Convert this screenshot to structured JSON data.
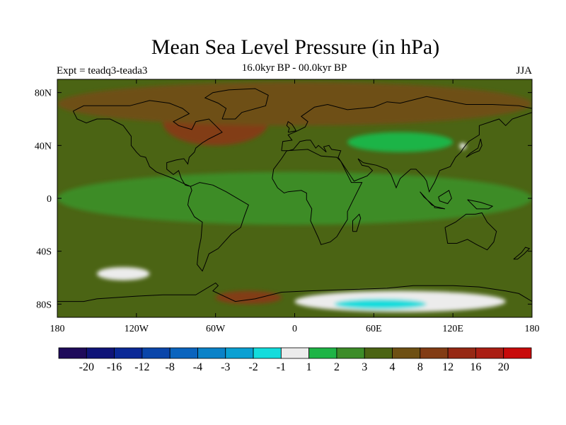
{
  "chart_data": {
    "type": "heatmap",
    "title": "Mean Sea Level Pressure (in hPa)",
    "subtitle": "16.0kyr BP - 00.0kyr BP",
    "left_label": "Expt = teadq3-teada3",
    "right_label": "JJA",
    "x_range": [
      -180,
      180
    ],
    "y_range": [
      -90,
      90
    ],
    "x_ticks": [
      {
        "value": -180,
        "label": "180"
      },
      {
        "value": -120,
        "label": "120W"
      },
      {
        "value": -60,
        "label": "60W"
      },
      {
        "value": 0,
        "label": "0"
      },
      {
        "value": 60,
        "label": "60E"
      },
      {
        "value": 120,
        "label": "120E"
      },
      {
        "value": 180,
        "label": "180"
      }
    ],
    "y_ticks": [
      {
        "value": 80,
        "label": "80N"
      },
      {
        "value": 40,
        "label": "40N"
      },
      {
        "value": 0,
        "label": "0"
      },
      {
        "value": -40,
        "label": "40S"
      },
      {
        "value": -80,
        "label": "80S"
      }
    ],
    "colorbar": {
      "labels": [
        "-20",
        "-16",
        "-12",
        "-8",
        "-4",
        "-3",
        "-2",
        "-1",
        "1",
        "2",
        "3",
        "4",
        "8",
        "12",
        "16",
        "20"
      ],
      "colors": [
        "#1e0a5a",
        "#0f1478",
        "#0a2896",
        "#0a46aa",
        "#0a64be",
        "#0a82c8",
        "#0aa0d2",
        "#14dcdc",
        "#ececec",
        "#1eb446",
        "#3c8c28",
        "#4b6414",
        "#6e5014",
        "#823c14",
        "#962814",
        "#aa1e14",
        "#c80a0a"
      ]
    },
    "background_level": "4 to 8",
    "regions": [
      {
        "name": "North Atlantic / Canada high",
        "level": "12 to 16",
        "lon": [
          -100,
          -20
        ],
        "lat": [
          40,
          75
        ]
      },
      {
        "name": "Arctic high band",
        "level": "8 to 12",
        "lon": [
          -180,
          180
        ],
        "lat": [
          55,
          88
        ]
      },
      {
        "name": "Equatorial weaker zone",
        "level": "3 to 4",
        "lon": [
          -180,
          180
        ],
        "lat": [
          -20,
          20
        ]
      },
      {
        "name": "South Pacific low",
        "level": "-1 to 1",
        "lon": [
          -150,
          -110
        ],
        "lat": [
          -62,
          -52
        ]
      },
      {
        "name": "Ross / Weddell high",
        "level": "12 to 16",
        "lon": [
          -60,
          -10
        ],
        "lat": [
          -80,
          -70
        ]
      },
      {
        "name": "East Antarctic low",
        "level": "-1 to 1",
        "lon": [
          0,
          160
        ],
        "lat": [
          -86,
          -70
        ]
      },
      {
        "name": "East Antarctic strong low",
        "level": "-3 to -1",
        "lon": [
          30,
          100
        ],
        "lat": [
          -84,
          -76
        ]
      },
      {
        "name": "Central Asia low",
        "level": "2 to 3",
        "lon": [
          40,
          120
        ],
        "lat": [
          35,
          50
        ]
      },
      {
        "name": "Korea/Japan low",
        "level": "-1 to 1",
        "lon": [
          125,
          130
        ],
        "lat": [
          37,
          42
        ]
      }
    ]
  }
}
